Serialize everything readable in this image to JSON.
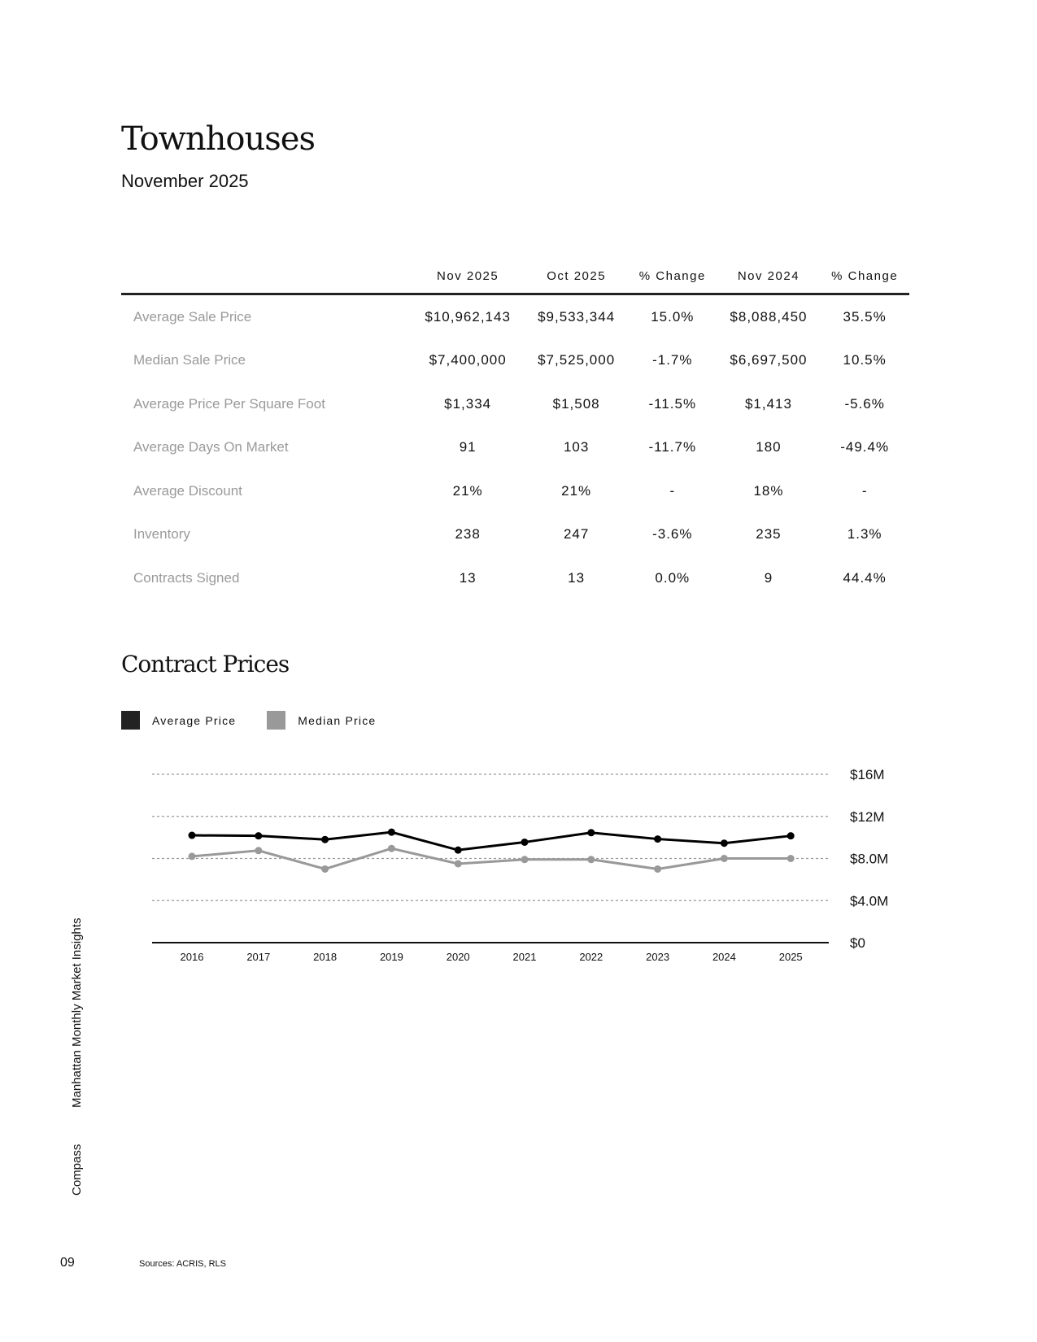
{
  "header": {
    "title": "Townhouses",
    "subtitle": "November 2025"
  },
  "table": {
    "columns": [
      "",
      "Nov 2025",
      "Oct 2025",
      "% Change",
      "Nov 2024",
      "% Change"
    ],
    "rows": [
      [
        "Average Sale Price",
        "$10,962,143",
        "$9,533,344",
        "15.0%",
        "$8,088,450",
        "35.5%"
      ],
      [
        "Median Sale Price",
        "$7,400,000",
        "$7,525,000",
        "-1.7%",
        "$6,697,500",
        "10.5%"
      ],
      [
        "Average Price Per Square Foot",
        "$1,334",
        "$1,508",
        "-11.5%",
        "$1,413",
        "-5.6%"
      ],
      [
        "Average Days On Market",
        "91",
        "103",
        "-11.7%",
        "180",
        "-49.4%"
      ],
      [
        "Average Discount",
        "21%",
        "21%",
        "-",
        "18%",
        "-"
      ],
      [
        "Inventory",
        "238",
        "247",
        "-3.6%",
        "235",
        "1.3%"
      ],
      [
        "Contracts Signed",
        "13",
        "13",
        "0.0%",
        "9",
        "44.4%"
      ]
    ]
  },
  "chart_data": {
    "type": "line",
    "title": "Contract Prices",
    "categories": [
      "2016",
      "2017",
      "2018",
      "2019",
      "2020",
      "2021",
      "2022",
      "2023",
      "2024",
      "2025"
    ],
    "series": [
      {
        "name": "Average Price",
        "color": "#000000",
        "values": [
          10.2,
          10.15,
          9.8,
          10.5,
          8.8,
          9.55,
          10.45,
          9.85,
          9.45,
          10.15
        ]
      },
      {
        "name": "Median Price",
        "color": "#999999",
        "values": [
          8.2,
          8.75,
          7.0,
          8.95,
          7.5,
          7.9,
          7.9,
          7.0,
          8.0,
          8.0
        ]
      }
    ],
    "unit": "$M",
    "ylim": [
      0,
      16
    ],
    "yticks": [
      {
        "v": 16,
        "label": "$16M"
      },
      {
        "v": 12,
        "label": "$12M"
      },
      {
        "v": 8,
        "label": "$8.0M"
      },
      {
        "v": 4,
        "label": "$4.0M"
      },
      {
        "v": 0,
        "label": "$0"
      }
    ],
    "grid": true,
    "legend": "top-left"
  },
  "sidebar": {
    "report": "Manhattan Monthly Market Insights",
    "brand": "Compass"
  },
  "footer": {
    "page": "09",
    "sources": "Sources: ACRIS, RLS"
  }
}
